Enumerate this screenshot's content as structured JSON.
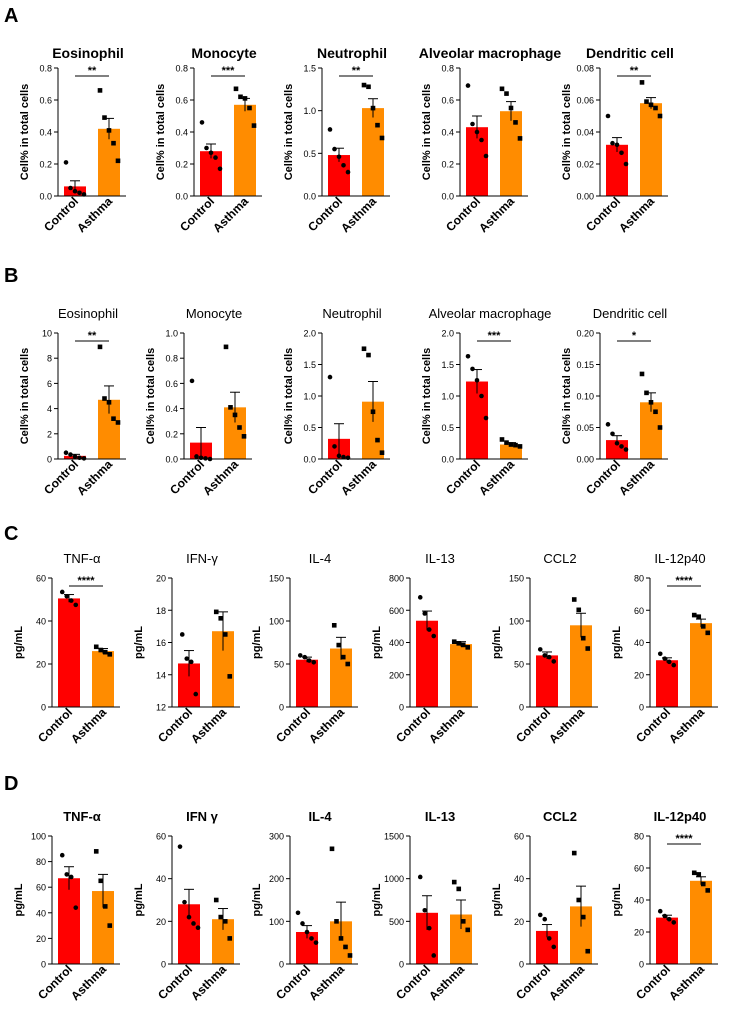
{
  "figure": {
    "groups": [
      "Control",
      "Asthma"
    ],
    "colors": {
      "control": "#ff0000",
      "asthma": "#ff8c00",
      "axis": "#000000"
    }
  },
  "panels": [
    {
      "label": "A",
      "ylabel": "Cell% in total cells"
    },
    {
      "label": "B",
      "ylabel": "Cell% in total cells"
    },
    {
      "label": "C",
      "ylabel": "pg/mL"
    },
    {
      "label": "D",
      "ylabel": "pg/mL"
    }
  ],
  "chart_data": [
    {
      "type": "bar",
      "panel": "A",
      "title": "Eosinophil",
      "ylabel": "Cell% in total cells",
      "categories": [
        "Control",
        "Asthma"
      ],
      "ylim": [
        0,
        0.8
      ],
      "yticks": [
        0.0,
        0.2,
        0.4,
        0.6,
        0.8
      ],
      "ytick_labels": [
        "0.0",
        "0.2",
        "0.4",
        "0.6",
        "0.8"
      ],
      "means": [
        0.06,
        0.42
      ],
      "sem": [
        0.035,
        0.065
      ],
      "points": [
        [
          0.21,
          0.05,
          0.03,
          0.02,
          0.01
        ],
        [
          0.66,
          0.49,
          0.41,
          0.33,
          0.22
        ]
      ],
      "significance": "**"
    },
    {
      "type": "bar",
      "panel": "A",
      "title": "Monocyte",
      "ylabel": "Cell% in total cells",
      "categories": [
        "Control",
        "Asthma"
      ],
      "ylim": [
        0,
        0.8
      ],
      "yticks": [
        0.0,
        0.2,
        0.4,
        0.6,
        0.8
      ],
      "ytick_labels": [
        "0.0",
        "0.2",
        "0.4",
        "0.6",
        "0.8"
      ],
      "means": [
        0.28,
        0.57
      ],
      "sem": [
        0.045,
        0.04
      ],
      "points": [
        [
          0.46,
          0.3,
          0.27,
          0.24,
          0.17
        ],
        [
          0.67,
          0.62,
          0.61,
          0.55,
          0.44
        ]
      ],
      "significance": "***"
    },
    {
      "type": "bar",
      "panel": "A",
      "title": "Neutrophil",
      "ylabel": "Cell% in total cells",
      "categories": [
        "Control",
        "Asthma"
      ],
      "ylim": [
        0,
        1.5
      ],
      "yticks": [
        0.0,
        0.5,
        1.0,
        1.5
      ],
      "ytick_labels": [
        "0.0",
        "0.5",
        "1.0",
        "1.5"
      ],
      "means": [
        0.48,
        1.03
      ],
      "sem": [
        0.08,
        0.11
      ],
      "points": [
        [
          0.78,
          0.55,
          0.46,
          0.36,
          0.28
        ],
        [
          1.3,
          1.28,
          1.03,
          0.83,
          0.68
        ]
      ],
      "significance": "**"
    },
    {
      "type": "bar",
      "panel": "A",
      "title": "Alveolar macrophage",
      "ylabel": "Cell% in total cells",
      "categories": [
        "Control",
        "Asthma"
      ],
      "ylim": [
        0,
        0.8
      ],
      "yticks": [
        0.0,
        0.2,
        0.4,
        0.6,
        0.8
      ],
      "ytick_labels": [
        "0.0",
        "0.2",
        "0.4",
        "0.6",
        "0.8"
      ],
      "means": [
        0.43,
        0.53
      ],
      "sem": [
        0.07,
        0.06
      ],
      "points": [
        [
          0.69,
          0.45,
          0.4,
          0.35,
          0.25
        ],
        [
          0.67,
          0.64,
          0.55,
          0.46,
          0.36
        ]
      ],
      "significance": ""
    },
    {
      "type": "bar",
      "panel": "A",
      "title": "Dendritic cell",
      "ylabel": "Cell% in total cells",
      "categories": [
        "Control",
        "Asthma"
      ],
      "ylim": [
        0,
        0.08
      ],
      "yticks": [
        0.0,
        0.02,
        0.04,
        0.06,
        0.08
      ],
      "ytick_labels": [
        "0.00",
        "0.02",
        "0.04",
        "0.06",
        "0.08"
      ],
      "means": [
        0.032,
        0.058
      ],
      "sem": [
        0.0045,
        0.0035
      ],
      "points": [
        [
          0.05,
          0.033,
          0.032,
          0.027,
          0.02
        ],
        [
          0.071,
          0.059,
          0.057,
          0.055,
          0.05
        ]
      ],
      "significance": "**"
    },
    {
      "type": "bar",
      "panel": "B",
      "title": "Eosinophil",
      "ylabel": "Cell% in total cells",
      "categories": [
        "Control",
        "Asthma"
      ],
      "ylim": [
        0,
        10
      ],
      "yticks": [
        0,
        2,
        4,
        6,
        8,
        10
      ],
      "ytick_labels": [
        "0",
        "2",
        "4",
        "6",
        "8",
        "10"
      ],
      "means": [
        0.25,
        4.7
      ],
      "sem": [
        0.12,
        1.1
      ],
      "points": [
        [
          0.5,
          0.35,
          0.2,
          0.1,
          0.05
        ],
        [
          8.9,
          4.8,
          4.5,
          3.2,
          2.9
        ]
      ],
      "significance": "**"
    },
    {
      "type": "bar",
      "panel": "B",
      "title": "Monocyte",
      "ylabel": "Cell% in total cells",
      "categories": [
        "Control",
        "Asthma"
      ],
      "ylim": [
        0,
        1.0
      ],
      "yticks": [
        0.0,
        0.2,
        0.4,
        0.6,
        0.8,
        1.0
      ],
      "ytick_labels": [
        "0.0",
        "0.2",
        "0.4",
        "0.6",
        "0.8",
        "1.0"
      ],
      "means": [
        0.13,
        0.41
      ],
      "sem": [
        0.12,
        0.12
      ],
      "points": [
        [
          0.62,
          0.02,
          0.01,
          0.005,
          0.0
        ],
        [
          0.89,
          0.41,
          0.35,
          0.25,
          0.18
        ]
      ],
      "significance": ""
    },
    {
      "type": "bar",
      "panel": "B",
      "title": "Neutrophil",
      "ylabel": "Cell% in total cells",
      "categories": [
        "Control",
        "Asthma"
      ],
      "ylim": [
        0,
        2.0
      ],
      "yticks": [
        0.0,
        0.5,
        1.0,
        1.5,
        2.0
      ],
      "ytick_labels": [
        "0.0",
        "0.5",
        "1.0",
        "1.5",
        "2.0"
      ],
      "means": [
        0.32,
        0.91
      ],
      "sem": [
        0.24,
        0.32
      ],
      "points": [
        [
          1.3,
          0.2,
          0.05,
          0.03,
          0.02
        ],
        [
          1.75,
          1.65,
          0.75,
          0.3,
          0.1
        ]
      ],
      "significance": ""
    },
    {
      "type": "bar",
      "panel": "B",
      "title": "Alveolar macrophage",
      "ylabel": "Cell% in total cells",
      "categories": [
        "Control",
        "Asthma"
      ],
      "ylim": [
        0,
        2.0
      ],
      "yticks": [
        0.0,
        0.5,
        1.0,
        1.5,
        2.0
      ],
      "ytick_labels": [
        "0.0",
        "0.5",
        "1.0",
        "1.5",
        "2.0"
      ],
      "means": [
        1.23,
        0.23
      ],
      "sem": [
        0.19,
        0.03
      ],
      "points": [
        [
          1.63,
          1.43,
          1.25,
          1.0,
          0.65
        ],
        [
          0.31,
          0.26,
          0.23,
          0.22,
          0.2
        ]
      ],
      "significance": "***"
    },
    {
      "type": "bar",
      "panel": "B",
      "title": "Dendritic cell",
      "ylabel": "Cell% in total cells",
      "categories": [
        "Control",
        "Asthma"
      ],
      "ylim": [
        0,
        0.2
      ],
      "yticks": [
        0.0,
        0.05,
        0.1,
        0.15,
        0.2
      ],
      "ytick_labels": [
        "0.00",
        "0.05",
        "0.10",
        "0.15",
        "0.20"
      ],
      "means": [
        0.03,
        0.09
      ],
      "sem": [
        0.007,
        0.015
      ],
      "points": [
        [
          0.055,
          0.04,
          0.025,
          0.02,
          0.015
        ],
        [
          0.135,
          0.105,
          0.09,
          0.075,
          0.05
        ]
      ],
      "significance": "*"
    },
    {
      "type": "bar",
      "panel": "C",
      "title": "TNF-α",
      "ylabel": "pg/mL",
      "categories": [
        "Control",
        "Asthma"
      ],
      "ylim": [
        0,
        60
      ],
      "yticks": [
        0,
        20,
        40,
        60
      ],
      "ytick_labels": [
        "0",
        "20",
        "40",
        "60"
      ],
      "means": [
        50.5,
        26
      ],
      "sem": [
        1.8,
        1.2
      ],
      "points": [
        [
          53.5,
          51.5,
          49.5,
          47.5
        ],
        [
          28,
          26.5,
          25.5,
          24.5
        ]
      ],
      "significance": "****"
    },
    {
      "type": "bar",
      "panel": "C",
      "title": "IFN-γ",
      "ylabel": "pg/mL",
      "categories": [
        "Control",
        "Asthma"
      ],
      "ylim": [
        12,
        20
      ],
      "yticks": [
        12,
        14,
        16,
        18,
        20
      ],
      "ytick_labels": [
        "12",
        "14",
        "16",
        "18",
        "20"
      ],
      "means": [
        14.7,
        16.7
      ],
      "sem": [
        0.8,
        1.2
      ],
      "points": [
        [
          16.5,
          15.0,
          14.8,
          12.8
        ],
        [
          17.9,
          17.5,
          16.5,
          13.9
        ]
      ],
      "significance": ""
    },
    {
      "type": "bar",
      "panel": "C",
      "title": "IL-4",
      "ylabel": "pg/mL",
      "categories": [
        "Control",
        "Asthma"
      ],
      "ylim": [
        0,
        150
      ],
      "yticks": [
        0,
        50,
        100,
        150
      ],
      "ytick_labels": [
        "0",
        "50",
        "100",
        "150"
      ],
      "means": [
        55,
        68
      ],
      "sem": [
        3,
        13
      ],
      "points": [
        [
          60,
          58,
          54,
          52
        ],
        [
          95,
          72,
          58,
          50
        ]
      ],
      "significance": ""
    },
    {
      "type": "bar",
      "panel": "C",
      "title": "IL-13",
      "ylabel": "pg/mL",
      "categories": [
        "Control",
        "Asthma"
      ],
      "ylim": [
        0,
        800
      ],
      "yticks": [
        0,
        200,
        400,
        600,
        800
      ],
      "ytick_labels": [
        "0",
        "200",
        "400",
        "600",
        "800"
      ],
      "means": [
        535,
        390
      ],
      "sem": [
        60,
        15
      ],
      "points": [
        [
          680,
          580,
          480,
          440
        ],
        [
          405,
          395,
          385,
          370
        ]
      ],
      "significance": ""
    },
    {
      "type": "bar",
      "panel": "C",
      "title": "CCL2",
      "ylabel": "pg/mL",
      "categories": [
        "Control",
        "Asthma"
      ],
      "ylim": [
        0,
        150
      ],
      "yticks": [
        0,
        50,
        100,
        150
      ],
      "ytick_labels": [
        "0",
        "50",
        "100",
        "150"
      ],
      "means": [
        60,
        95
      ],
      "sem": [
        4,
        14
      ],
      "points": [
        [
          67,
          60,
          58,
          53
        ],
        [
          125,
          113,
          80,
          68
        ]
      ],
      "significance": ""
    },
    {
      "type": "bar",
      "panel": "C",
      "title": "IL-12p40",
      "ylabel": "pg/mL",
      "categories": [
        "Control",
        "Asthma"
      ],
      "ylim": [
        0,
        80
      ],
      "yticks": [
        0,
        20,
        40,
        60,
        80
      ],
      "ytick_labels": [
        "0",
        "20",
        "40",
        "60",
        "80"
      ],
      "means": [
        29,
        52
      ],
      "sem": [
        1.5,
        2.5
      ],
      "points": [
        [
          33,
          30,
          28,
          26
        ],
        [
          57,
          56,
          50,
          46
        ]
      ],
      "significance": "****"
    },
    {
      "type": "bar",
      "panel": "D",
      "title": "TNF-α",
      "ylabel": "pg/mL",
      "categories": [
        "Control",
        "Asthma"
      ],
      "ylim": [
        0,
        100
      ],
      "yticks": [
        0,
        20,
        40,
        60,
        80,
        100
      ],
      "ytick_labels": [
        "0",
        "20",
        "40",
        "60",
        "80",
        "100"
      ],
      "means": [
        67,
        57
      ],
      "sem": [
        9,
        13
      ],
      "points": [
        [
          85,
          70,
          68,
          44
        ],
        [
          88,
          65,
          45,
          30
        ]
      ],
      "significance": ""
    },
    {
      "type": "bar",
      "panel": "D",
      "title": "IFN γ",
      "ylabel": "pg/mL",
      "categories": [
        "Control",
        "Asthma"
      ],
      "ylim": [
        0,
        60
      ],
      "yticks": [
        0,
        20,
        40,
        60
      ],
      "ytick_labels": [
        "0",
        "20",
        "40",
        "60"
      ],
      "means": [
        28,
        21
      ],
      "sem": [
        7,
        5
      ],
      "points": [
        [
          55,
          29,
          22,
          19,
          17
        ],
        [
          30,
          22,
          20,
          12
        ]
      ],
      "significance": ""
    },
    {
      "type": "bar",
      "panel": "D",
      "title": "IL-4",
      "ylabel": "pg/mL",
      "categories": [
        "Control",
        "Asthma"
      ],
      "ylim": [
        0,
        300
      ],
      "yticks": [
        0,
        100,
        200,
        300
      ],
      "ytick_labels": [
        "0",
        "100",
        "200",
        "300"
      ],
      "means": [
        75,
        100
      ],
      "sem": [
        15,
        45
      ],
      "points": [
        [
          120,
          95,
          75,
          60,
          50
        ],
        [
          270,
          100,
          60,
          40,
          20
        ]
      ],
      "significance": ""
    },
    {
      "type": "bar",
      "panel": "D",
      "title": "IL-13",
      "ylabel": "pg/mL",
      "categories": [
        "Control",
        "Asthma"
      ],
      "ylim": [
        0,
        1500
      ],
      "yticks": [
        0,
        500,
        1000,
        1500
      ],
      "ytick_labels": [
        "0",
        "500",
        "1000",
        "1500"
      ],
      "means": [
        600,
        580
      ],
      "sem": [
        200,
        170
      ],
      "points": [
        [
          1020,
          630,
          420,
          100
        ],
        [
          960,
          880,
          500,
          400
        ]
      ],
      "significance": ""
    },
    {
      "type": "bar",
      "panel": "D",
      "title": "CCL2",
      "ylabel": "pg/mL",
      "categories": [
        "Control",
        "Asthma"
      ],
      "ylim": [
        0,
        60
      ],
      "yticks": [
        0,
        20,
        40,
        60
      ],
      "ytick_labels": [
        "0",
        "20",
        "40",
        "60"
      ],
      "means": [
        15.5,
        27
      ],
      "sem": [
        3,
        9.5
      ],
      "points": [
        [
          23,
          21,
          12,
          8
        ],
        [
          52,
          30,
          22,
          6
        ]
      ],
      "significance": ""
    },
    {
      "type": "bar",
      "panel": "D",
      "title": "IL-12p40",
      "ylabel": "pg/mL",
      "categories": [
        "Control",
        "Asthma"
      ],
      "ylim": [
        0,
        80
      ],
      "yticks": [
        0,
        20,
        40,
        60,
        80
      ],
      "ytick_labels": [
        "0",
        "20",
        "40",
        "60",
        "80"
      ],
      "means": [
        29,
        52
      ],
      "sem": [
        1.5,
        2.5
      ],
      "points": [
        [
          33,
          30,
          28,
          26
        ],
        [
          57,
          56,
          50,
          46
        ]
      ],
      "significance": "****"
    }
  ]
}
